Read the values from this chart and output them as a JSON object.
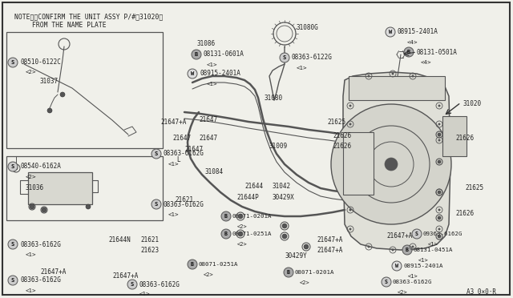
{
  "bg": "#f0f0ea",
  "lc": "#555555",
  "tc": "#222222",
  "note1": "NOTE）※CONFIRM THE UNIT ASSY P/#（31020）",
  "note2": "FROM THE NAME PLATE",
  "diagram_id": "A3 0×0·R",
  "figw": 6.4,
  "figh": 3.72
}
